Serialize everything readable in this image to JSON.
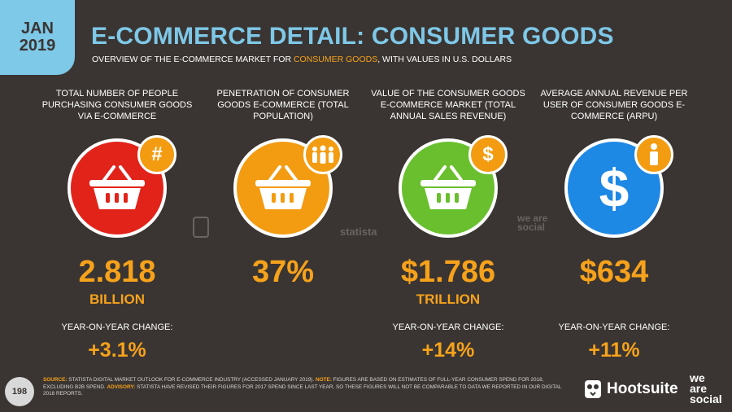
{
  "date_badge": {
    "month": "JAN",
    "year": "2019"
  },
  "header": {
    "title": "E-COMMERCE DETAIL: CONSUMER GOODS",
    "subtitle_pre": "OVERVIEW OF THE E-COMMERCE MARKET FOR ",
    "subtitle_highlight": "CONSUMER GOODS",
    "subtitle_post": ", WITH VALUES IN U.S. DOLLARS"
  },
  "colors": {
    "accent_blue": "#7ec8e8",
    "accent_orange": "#f7a21b",
    "red": "#e2231a",
    "orange": "#f39c12",
    "green": "#6abf2e",
    "blue": "#1e88e5",
    "background": "#3a3532"
  },
  "stats": [
    {
      "label": "TOTAL NUMBER OF PEOPLE PURCHASING CONSUMER GOODS VIA E-COMMERCE",
      "icon": "basket-icon",
      "badge_icon": "hash-icon",
      "value": "2.818",
      "unit": "BILLION",
      "change_label": "YEAR-ON-YEAR CHANGE:",
      "change": "+3.1%"
    },
    {
      "label": "PENETRATION OF CONSUMER GOODS E-COMMERCE (TOTAL POPULATION)",
      "icon": "basket-icon",
      "badge_icon": "people-icon",
      "value": "37%",
      "unit": "",
      "change_label": "",
      "change": ""
    },
    {
      "label": "VALUE OF THE CONSUMER GOODS E-COMMERCE MARKET (TOTAL ANNUAL SALES REVENUE)",
      "icon": "basket-icon",
      "badge_icon": "dollar-icon",
      "value": "$1.786",
      "unit": "TRILLION",
      "change_label": "YEAR-ON-YEAR CHANGE:",
      "change": "+14%"
    },
    {
      "label": "AVERAGE ANNUAL REVENUE PER USER OF CONSUMER GOODS E-COMMERCE (ARPU)",
      "icon": "dollar-icon",
      "badge_icon": "person-icon",
      "value": "$634",
      "unit": "",
      "change_label": "YEAR-ON-YEAR CHANGE:",
      "change": "+11%"
    }
  ],
  "watermarks": {
    "statista": "statista",
    "we_are_social": "we are social"
  },
  "footer": {
    "page_number": "198",
    "source_key": "SOURCE:",
    "source_text": " STATISTA DIGITAL MARKET OUTLOOK FOR E-COMMERCE INDUSTRY (ACCESSED JANUARY 2019). ",
    "note_key": "NOTE:",
    "note_text": " FIGURES ARE BASED ON ESTIMATES OF FULL-YEAR CONSUMER SPEND FOR 2018, EXCLUDING B2B SPEND. ",
    "advisory_key": "ADVISORY:",
    "advisory_text": " STATISTA HAVE REVISED THEIR FIGURES FOR 2017 SPEND SINCE LAST YEAR, SO THESE FIGURES WILL NOT BE COMPARABLE TO DATA WE REPORTED IN OUR DIGITAL 2018 REPORTS.",
    "brand": "Hootsuite",
    "was_1": "we",
    "was_2": "are",
    "was_3": "social"
  }
}
